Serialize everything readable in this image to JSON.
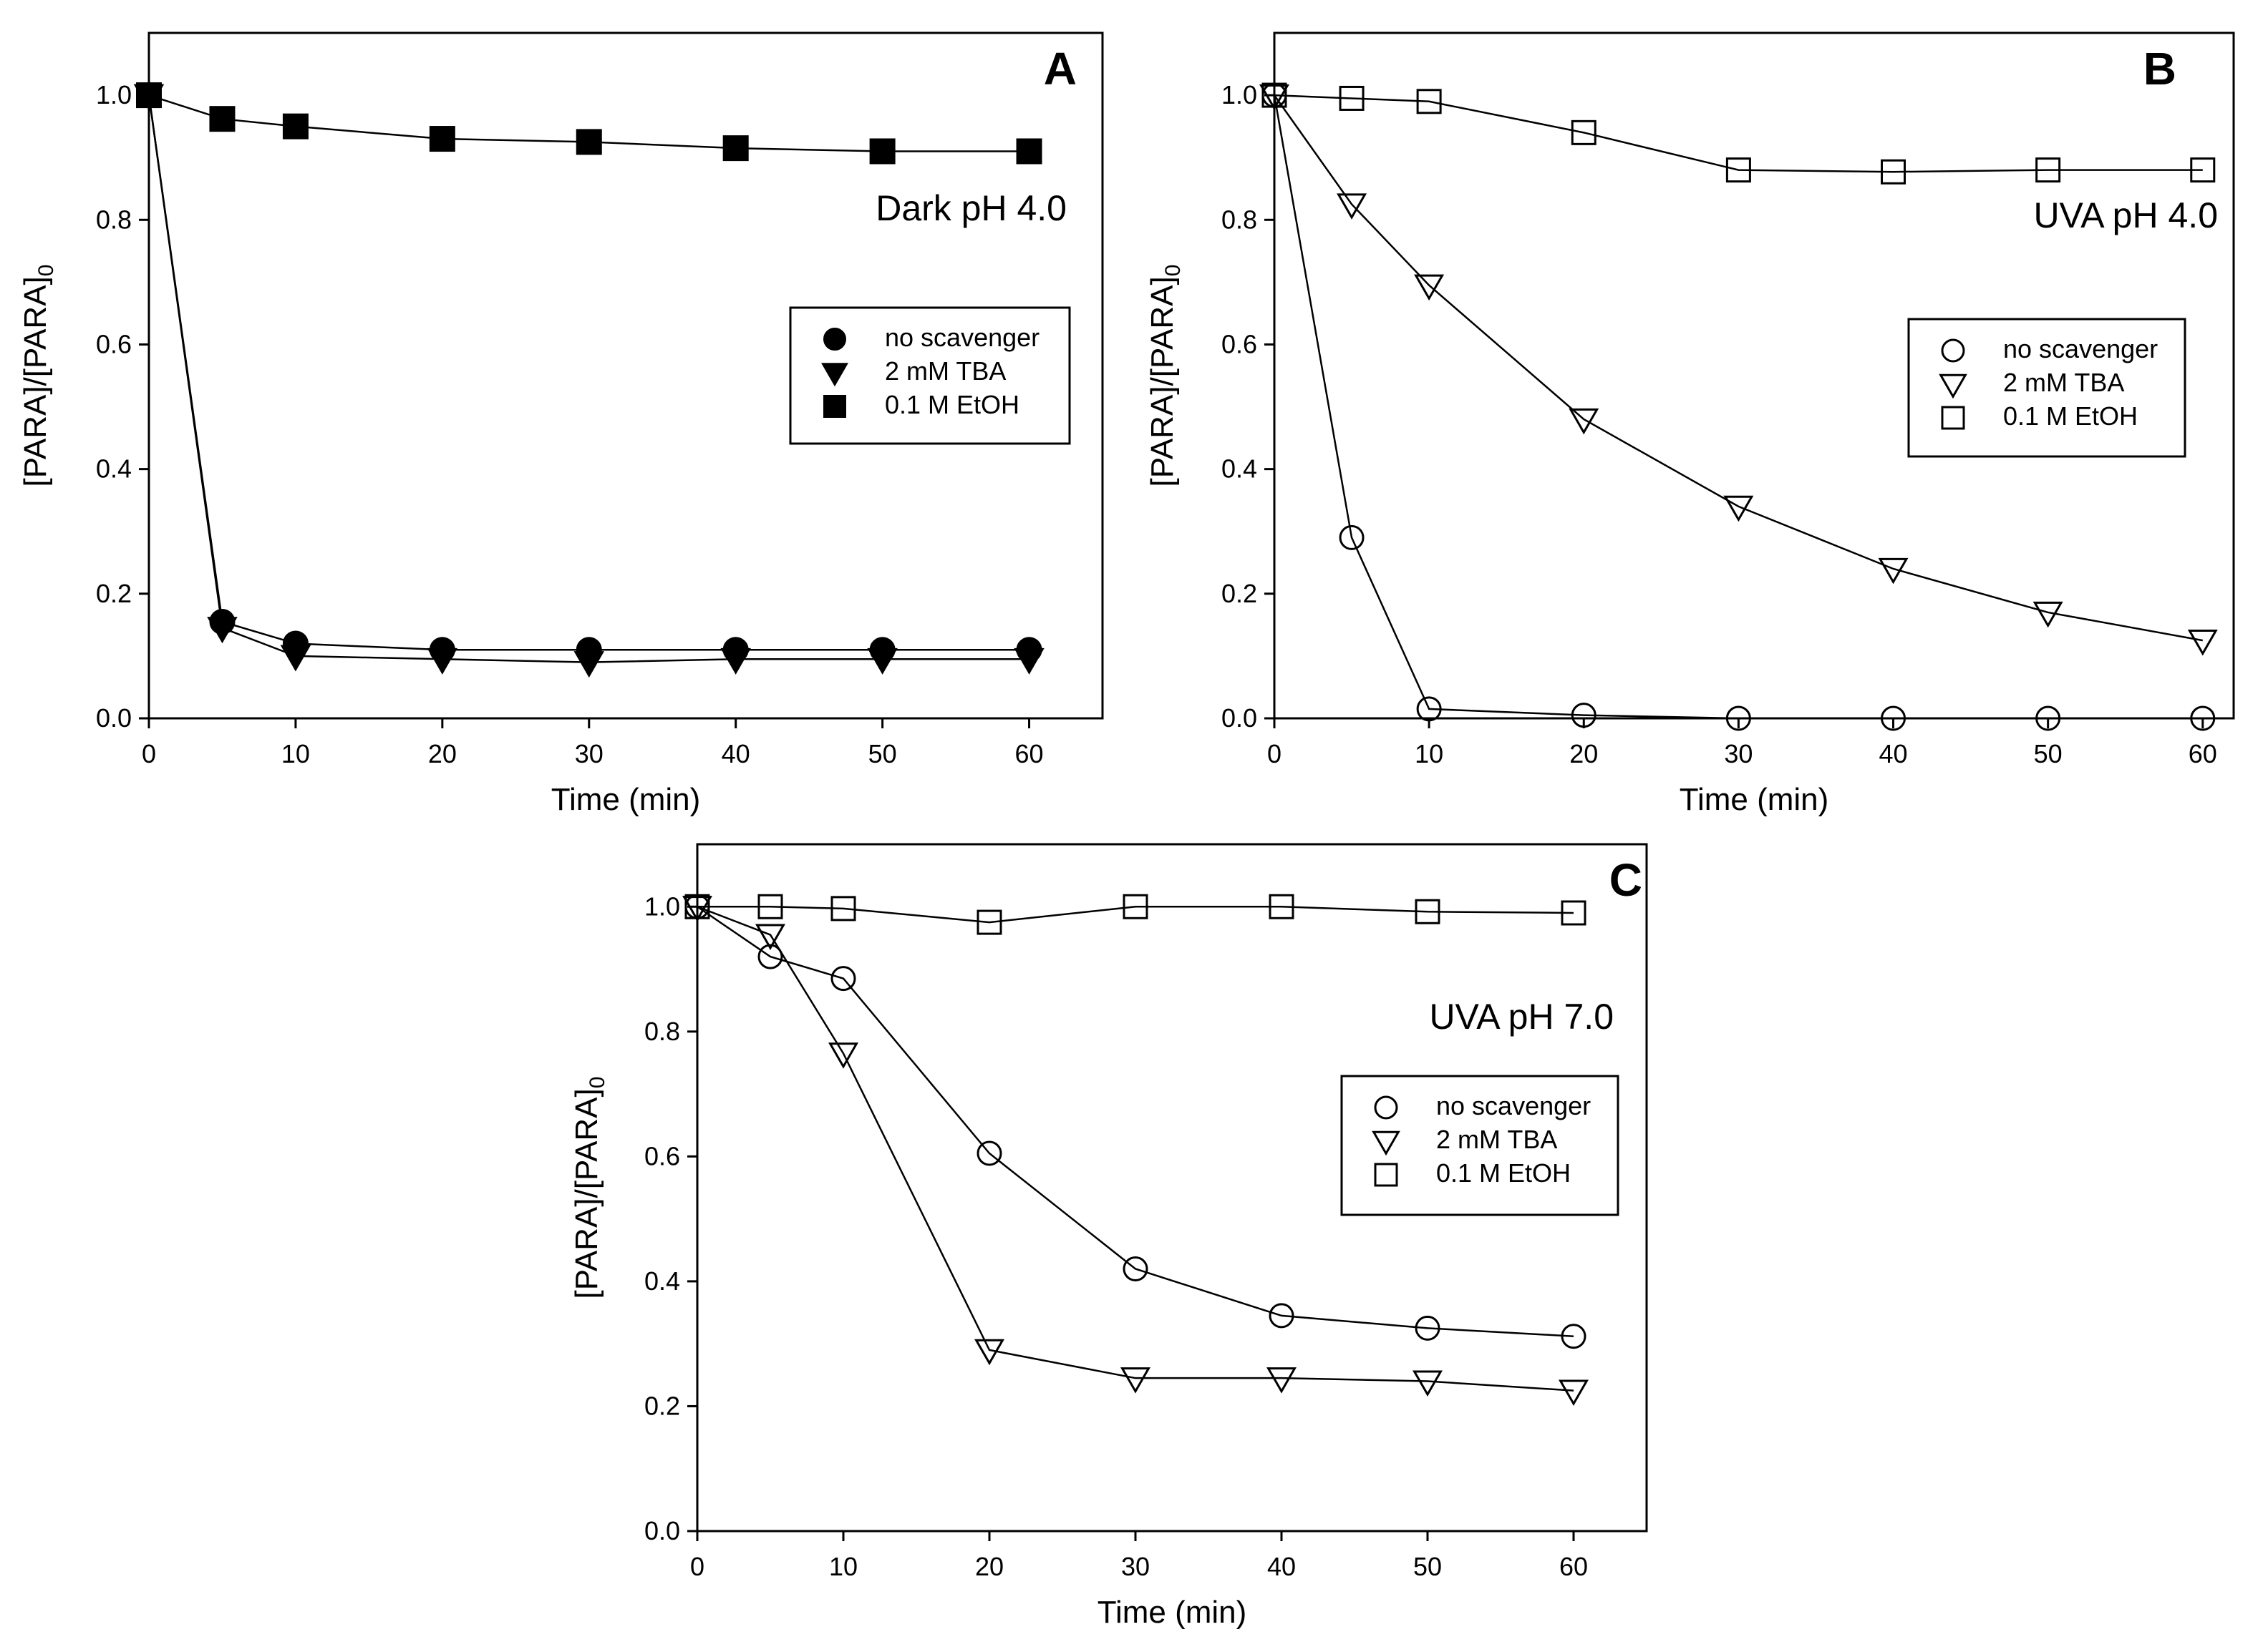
{
  "chart_data": [
    {
      "id": "A",
      "type": "line",
      "panel_label": "A",
      "condition": "Dark pH 4.0",
      "xlabel": "Time (min)",
      "ylabel": "[PARA]/[PARA]",
      "ylabel_sub": "0",
      "xlim": [
        0,
        65
      ],
      "ylim": [
        0,
        1.1
      ],
      "xticks": [
        0,
        10,
        20,
        30,
        40,
        50,
        60
      ],
      "yticks": [
        "0.0",
        "0.2",
        "0.4",
        "0.6",
        "0.8",
        "1.0"
      ],
      "marker_fill": "filled",
      "legend_position": "center-right",
      "series": [
        {
          "name": "no scavenger",
          "marker": "circle",
          "x": [
            0,
            5,
            10,
            20,
            30,
            40,
            50,
            60
          ],
          "values": [
            1.0,
            0.155,
            0.12,
            0.11,
            0.11,
            0.11,
            0.11,
            0.11
          ]
        },
        {
          "name": "2 mM TBA",
          "marker": "triangle-down",
          "x": [
            0,
            5,
            10,
            20,
            30,
            40,
            50,
            60
          ],
          "values": [
            1.0,
            0.145,
            0.1,
            0.095,
            0.09,
            0.095,
            0.095,
            0.095
          ]
        },
        {
          "name": "0.1 M EtOH",
          "marker": "square",
          "x": [
            0,
            5,
            10,
            20,
            30,
            40,
            50,
            60
          ],
          "values": [
            1.0,
            0.962,
            0.95,
            0.93,
            0.925,
            0.915,
            0.91,
            0.91
          ]
        }
      ]
    },
    {
      "id": "B",
      "type": "line",
      "panel_label": "B",
      "condition": "UVA pH 4.0",
      "xlabel": "Time (min)",
      "ylabel": "[PARA]/[PARA]",
      "ylabel_sub": "0",
      "xlim": [
        0,
        62
      ],
      "ylim": [
        0,
        1.1
      ],
      "xticks": [
        0,
        10,
        20,
        30,
        40,
        50,
        60
      ],
      "yticks": [
        "0.0",
        "0.2",
        "0.4",
        "0.6",
        "0.8",
        "1.0"
      ],
      "marker_fill": "open",
      "legend_position": "center-right",
      "series": [
        {
          "name": "no scavenger",
          "marker": "circle",
          "x": [
            0,
            5,
            10,
            20,
            30,
            40,
            50,
            60
          ],
          "values": [
            1.0,
            0.29,
            0.015,
            0.005,
            0.0,
            0.0,
            0.0,
            0.0
          ]
        },
        {
          "name": "2 mM TBA",
          "marker": "triangle-down",
          "x": [
            0,
            5,
            10,
            20,
            30,
            40,
            50,
            60
          ],
          "values": [
            1.0,
            0.825,
            0.695,
            0.48,
            0.34,
            0.24,
            0.17,
            0.125
          ]
        },
        {
          "name": "0.1 M EtOH",
          "marker": "square",
          "x": [
            0,
            5,
            10,
            20,
            30,
            40,
            50,
            60
          ],
          "values": [
            1.0,
            0.995,
            0.99,
            0.94,
            0.88,
            0.877,
            0.88,
            0.88
          ]
        }
      ]
    },
    {
      "id": "C",
      "type": "line",
      "panel_label": "C",
      "condition": "UVA pH 7.0",
      "xlabel": "Time (min)",
      "ylabel": "[PARA]/[PARA]",
      "ylabel_sub": "0",
      "xlim": [
        0,
        65
      ],
      "ylim": [
        0,
        1.1
      ],
      "xticks": [
        0,
        10,
        20,
        30,
        40,
        50,
        60
      ],
      "yticks": [
        "0.0",
        "0.2",
        "0.4",
        "0.6",
        "0.8",
        "1.0"
      ],
      "marker_fill": "open",
      "legend_position": "center-right",
      "series": [
        {
          "name": "no scavenger",
          "marker": "circle",
          "x": [
            0,
            5,
            10,
            20,
            30,
            40,
            50,
            60
          ],
          "values": [
            1.0,
            0.92,
            0.885,
            0.605,
            0.42,
            0.345,
            0.325,
            0.312
          ]
        },
        {
          "name": "2 mM TBA",
          "marker": "triangle-down",
          "x": [
            0,
            5,
            10,
            20,
            30,
            40,
            50,
            60
          ],
          "values": [
            1.0,
            0.955,
            0.765,
            0.29,
            0.245,
            0.245,
            0.24,
            0.225
          ]
        },
        {
          "name": "0.1 M EtOH",
          "marker": "square",
          "x": [
            0,
            5,
            10,
            20,
            30,
            40,
            50,
            60
          ],
          "values": [
            1.0,
            1.0,
            0.997,
            0.975,
            1.0,
            1.0,
            0.992,
            0.99
          ]
        }
      ]
    }
  ]
}
